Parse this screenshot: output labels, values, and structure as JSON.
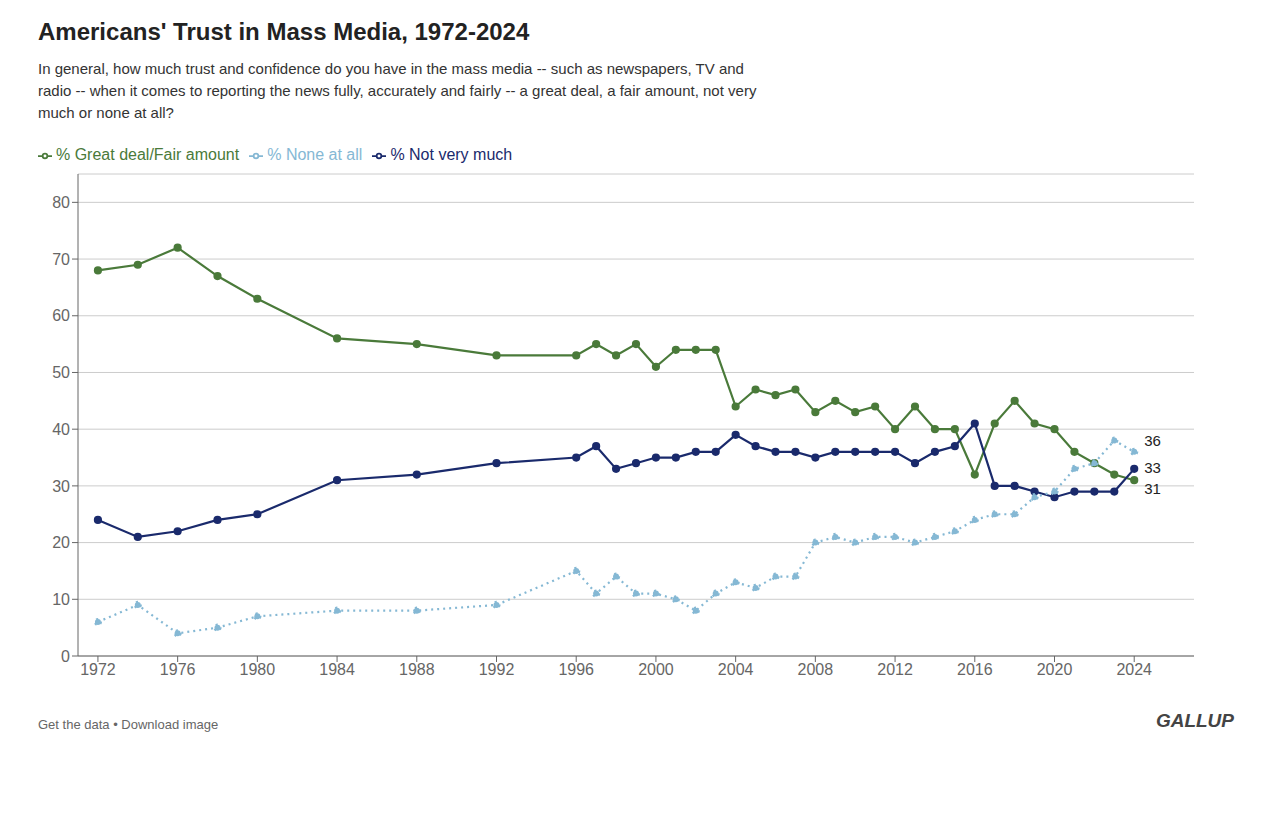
{
  "chart_data": {
    "type": "line",
    "title": "Americans' Trust in Mass Media, 1972-2024",
    "subtitle": [
      "In general, how much trust and confidence do you have in the mass media -- such as newspapers, TV and",
      "radio -- when it comes to reporting the news fully, accurately and fairly -- a great deal, a fair amount, not very",
      "much or none at all?"
    ],
    "annotations": [
      "Get the data • Download image",
      "GALLUP"
    ],
    "x": [
      1972,
      1974,
      1976,
      1978,
      1980,
      1984,
      1988,
      1992,
      1996,
      1997,
      1998,
      1999,
      2000,
      2001,
      2002,
      2003,
      2004,
      2005,
      2006,
      2007,
      2008,
      2009,
      2010,
      2011,
      2012,
      2013,
      2014,
      2015,
      2016,
      2017,
      2018,
      2019,
      2020,
      2021,
      2022,
      2023,
      2024
    ],
    "series": [
      {
        "name": "% Great deal/Fair amount",
        "color": "#4a7a3a",
        "marker": "circle",
        "line_style": "solid",
        "end_label": 31,
        "values": [
          68,
          69,
          72,
          67,
          63,
          56,
          55,
          53,
          53,
          55,
          53,
          55,
          51,
          54,
          54,
          54,
          44,
          47,
          46,
          47,
          43,
          45,
          43,
          44,
          40,
          44,
          40,
          40,
          32,
          41,
          45,
          41,
          40,
          36,
          34,
          32,
          31
        ]
      },
      {
        "name": "% Not very much",
        "color": "#1a2a6c",
        "marker": "circle",
        "line_style": "solid",
        "end_label": 33,
        "values": [
          24,
          21,
          22,
          24,
          25,
          31,
          32,
          34,
          35,
          37,
          33,
          34,
          35,
          35,
          36,
          36,
          39,
          37,
          36,
          36,
          35,
          36,
          36,
          36,
          36,
          34,
          36,
          37,
          41,
          30,
          30,
          29,
          28,
          29,
          29,
          29,
          33
        ]
      },
      {
        "name": "% None at all",
        "color": "#85b8d4",
        "marker": "circle",
        "line_style": "dotted",
        "end_label": 36,
        "values": [
          6,
          9,
          4,
          5,
          7,
          8,
          8,
          9,
          15,
          11,
          14,
          11,
          11,
          10,
          8,
          11,
          13,
          12,
          14,
          14,
          20,
          21,
          20,
          21,
          21,
          20,
          21,
          22,
          24,
          25,
          25,
          28,
          29,
          33,
          34,
          38,
          36
        ]
      }
    ],
    "xlim": [
      1971,
      2027
    ],
    "xticks": [
      1972,
      1976,
      1980,
      1984,
      1988,
      1992,
      1996,
      2000,
      2004,
      2008,
      2012,
      2016,
      2020,
      2024
    ],
    "ylim": [
      0,
      85
    ],
    "yticks": [
      0,
      10,
      20,
      30,
      40,
      50,
      60,
      70,
      80
    ],
    "grid": true,
    "legend": "top-left"
  }
}
